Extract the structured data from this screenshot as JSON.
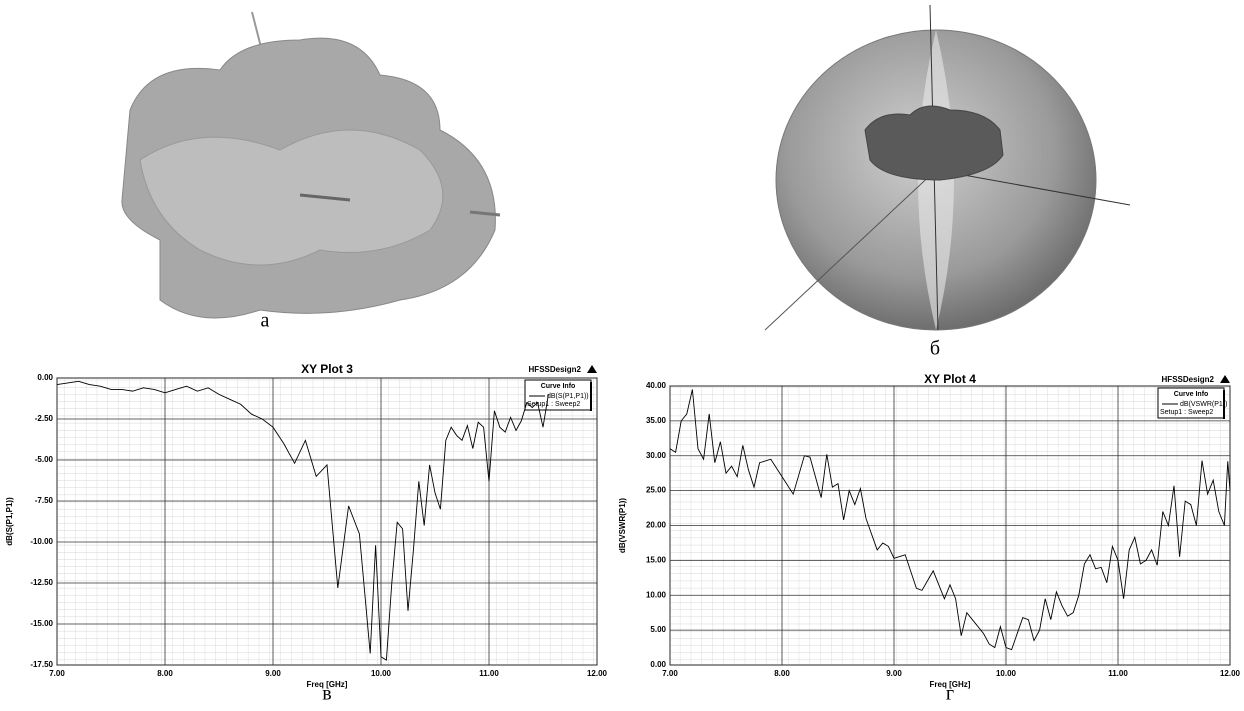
{
  "panels": [
    {
      "caption": "а"
    },
    {
      "caption": "б"
    }
  ],
  "chart_data": [
    {
      "type": "line",
      "title": "XY Plot 3",
      "caption": "в",
      "design": "HFSSDesign2",
      "legend_title": "Curve Info",
      "legend_subtitle": "Setup1 : Sweep2",
      "x_label": "Freq [GHz]",
      "y_label": "dB(S(P1,P1))",
      "grid": true,
      "xlim": [
        7,
        12
      ],
      "ylim": [
        -17.5,
        0
      ],
      "xticks": [
        {
          "value": 7,
          "label": "7.00"
        },
        {
          "value": 8,
          "label": "8.00"
        },
        {
          "value": 9,
          "label": "9.00"
        },
        {
          "value": 10,
          "label": "10.00"
        },
        {
          "value": 11,
          "label": "11.00"
        },
        {
          "value": 12,
          "label": "12.00"
        }
      ],
      "yticks": [
        {
          "value": 0,
          "label": "0.00"
        },
        {
          "value": -2.5,
          "label": "-2.50"
        },
        {
          "value": -5,
          "label": "-5.00"
        },
        {
          "value": -7.5,
          "label": "-7.50"
        },
        {
          "value": -10,
          "label": "-10.00"
        },
        {
          "value": -12.5,
          "label": "-12.50"
        },
        {
          "value": -15,
          "label": "-15.00"
        },
        {
          "value": -17.5,
          "label": "-17.50"
        }
      ],
      "x": [
        7.0,
        7.1,
        7.2,
        7.3,
        7.4,
        7.5,
        7.6,
        7.7,
        7.8,
        7.9,
        8.0,
        8.1,
        8.2,
        8.3,
        8.4,
        8.5,
        8.6,
        8.7,
        8.8,
        8.9,
        9.0,
        9.1,
        9.2,
        9.3,
        9.4,
        9.5,
        9.6,
        9.7,
        9.8,
        9.9,
        9.95,
        10.0,
        10.05,
        10.1,
        10.15,
        10.2,
        10.25,
        10.3,
        10.35,
        10.4,
        10.45,
        10.5,
        10.55,
        10.6,
        10.65,
        10.7,
        10.75,
        10.8,
        10.85,
        10.9,
        10.95,
        11.0,
        11.05,
        11.1,
        11.15,
        11.2,
        11.25,
        11.3,
        11.35,
        11.4,
        11.45,
        11.5,
        11.55
      ],
      "series": [
        {
          "name": "dB(S(P1,P1))",
          "color": "#000000",
          "values": [
            -0.4,
            -0.3,
            -0.2,
            -0.4,
            -0.5,
            -0.7,
            -0.7,
            -0.8,
            -0.6,
            -0.7,
            -0.9,
            -0.7,
            -0.5,
            -0.8,
            -0.6,
            -1.0,
            -1.3,
            -1.6,
            -2.2,
            -2.5,
            -3.0,
            -4.0,
            -5.2,
            -3.8,
            -6.0,
            -5.3,
            -12.8,
            -7.8,
            -9.5,
            -16.8,
            -10.2,
            -17.0,
            -17.2,
            -12.5,
            -8.8,
            -9.2,
            -14.2,
            -10.5,
            -6.3,
            -9.0,
            -5.3,
            -7.0,
            -8.0,
            -3.8,
            -3.0,
            -3.5,
            -3.8,
            -2.9,
            -4.3,
            -2.7,
            -3.0,
            -6.3,
            -2.0,
            -3.0,
            -3.3,
            -2.4,
            -3.2,
            -2.6,
            -1.5,
            -1.8,
            -1.5,
            -3.0,
            -1.0
          ]
        }
      ]
    },
    {
      "type": "line",
      "title": "XY Plot 4",
      "caption": "г",
      "design": "HFSSDesign2",
      "legend_title": "Curve Info",
      "legend_subtitle": "Setup1 : Sweep2",
      "x_label": "Freq [GHz]",
      "y_label": "dB(VSWR(P1))",
      "grid": true,
      "xlim": [
        7,
        12
      ],
      "ylim": [
        0,
        40
      ],
      "xticks": [
        {
          "value": 7,
          "label": "7.00"
        },
        {
          "value": 8,
          "label": "8.00"
        },
        {
          "value": 9,
          "label": "9.00"
        },
        {
          "value": 10,
          "label": "10.00"
        },
        {
          "value": 11,
          "label": "11.00"
        },
        {
          "value": 12,
          "label": "12.00"
        }
      ],
      "yticks": [
        {
          "value": 0,
          "label": "0.00"
        },
        {
          "value": 5,
          "label": "5.00"
        },
        {
          "value": 10,
          "label": "10.00"
        },
        {
          "value": 15,
          "label": "15.00"
        },
        {
          "value": 20,
          "label": "20.00"
        },
        {
          "value": 25,
          "label": "25.00"
        },
        {
          "value": 30,
          "label": "30.00"
        },
        {
          "value": 35,
          "label": "35.00"
        },
        {
          "value": 40,
          "label": "40.00"
        }
      ],
      "x": [
        7.0,
        7.05,
        7.1,
        7.15,
        7.2,
        7.25,
        7.3,
        7.35,
        7.4,
        7.45,
        7.5,
        7.55,
        7.6,
        7.65,
        7.7,
        7.75,
        7.8,
        7.9,
        8.0,
        8.1,
        8.2,
        8.25,
        8.35,
        8.4,
        8.45,
        8.5,
        8.55,
        8.6,
        8.65,
        8.7,
        8.75,
        8.85,
        8.9,
        8.95,
        9.0,
        9.1,
        9.2,
        9.25,
        9.35,
        9.45,
        9.5,
        9.55,
        9.6,
        9.65,
        9.7,
        9.8,
        9.85,
        9.9,
        9.95,
        10.0,
        10.05,
        10.15,
        10.2,
        10.25,
        10.3,
        10.35,
        10.4,
        10.45,
        10.5,
        10.55,
        10.6,
        10.65,
        10.7,
        10.75,
        10.8,
        10.85,
        10.9,
        10.95,
        11.0,
        11.05,
        11.1,
        11.15,
        11.2,
        11.25,
        11.3,
        11.35,
        11.4,
        11.45,
        11.5,
        11.55,
        11.6,
        11.65,
        11.7,
        11.75,
        11.8,
        11.85,
        11.9,
        11.95,
        11.98,
        12.0
      ],
      "series": [
        {
          "name": "dB(VSWR(P1))",
          "color": "#000000",
          "values": [
            31,
            30.5,
            35,
            36,
            39.5,
            31,
            29.5,
            36,
            29,
            32,
            27.5,
            28.5,
            27,
            31.5,
            28,
            25.5,
            29,
            29.5,
            27,
            24.5,
            30,
            29.8,
            24,
            30.2,
            25.5,
            26,
            20.8,
            25,
            23,
            25.3,
            21,
            16.5,
            17.5,
            17,
            15.3,
            15.8,
            11,
            10.7,
            13.5,
            9.5,
            11.5,
            9.5,
            4.2,
            7.5,
            6.5,
            4.5,
            3,
            2.5,
            5.5,
            2.5,
            2.2,
            6.8,
            6.5,
            3.5,
            5,
            9.5,
            6.5,
            10.5,
            8.5,
            7,
            7.5,
            10,
            14.5,
            15.8,
            13.8,
            14,
            11.8,
            17,
            15,
            9.5,
            16.5,
            18.3,
            14.5,
            15,
            16.5,
            14.3,
            22,
            20,
            25.7,
            15.5,
            23.5,
            23,
            20,
            29.3,
            24.5,
            26.5,
            22,
            20,
            29.2,
            25
          ]
        }
      ]
    }
  ]
}
